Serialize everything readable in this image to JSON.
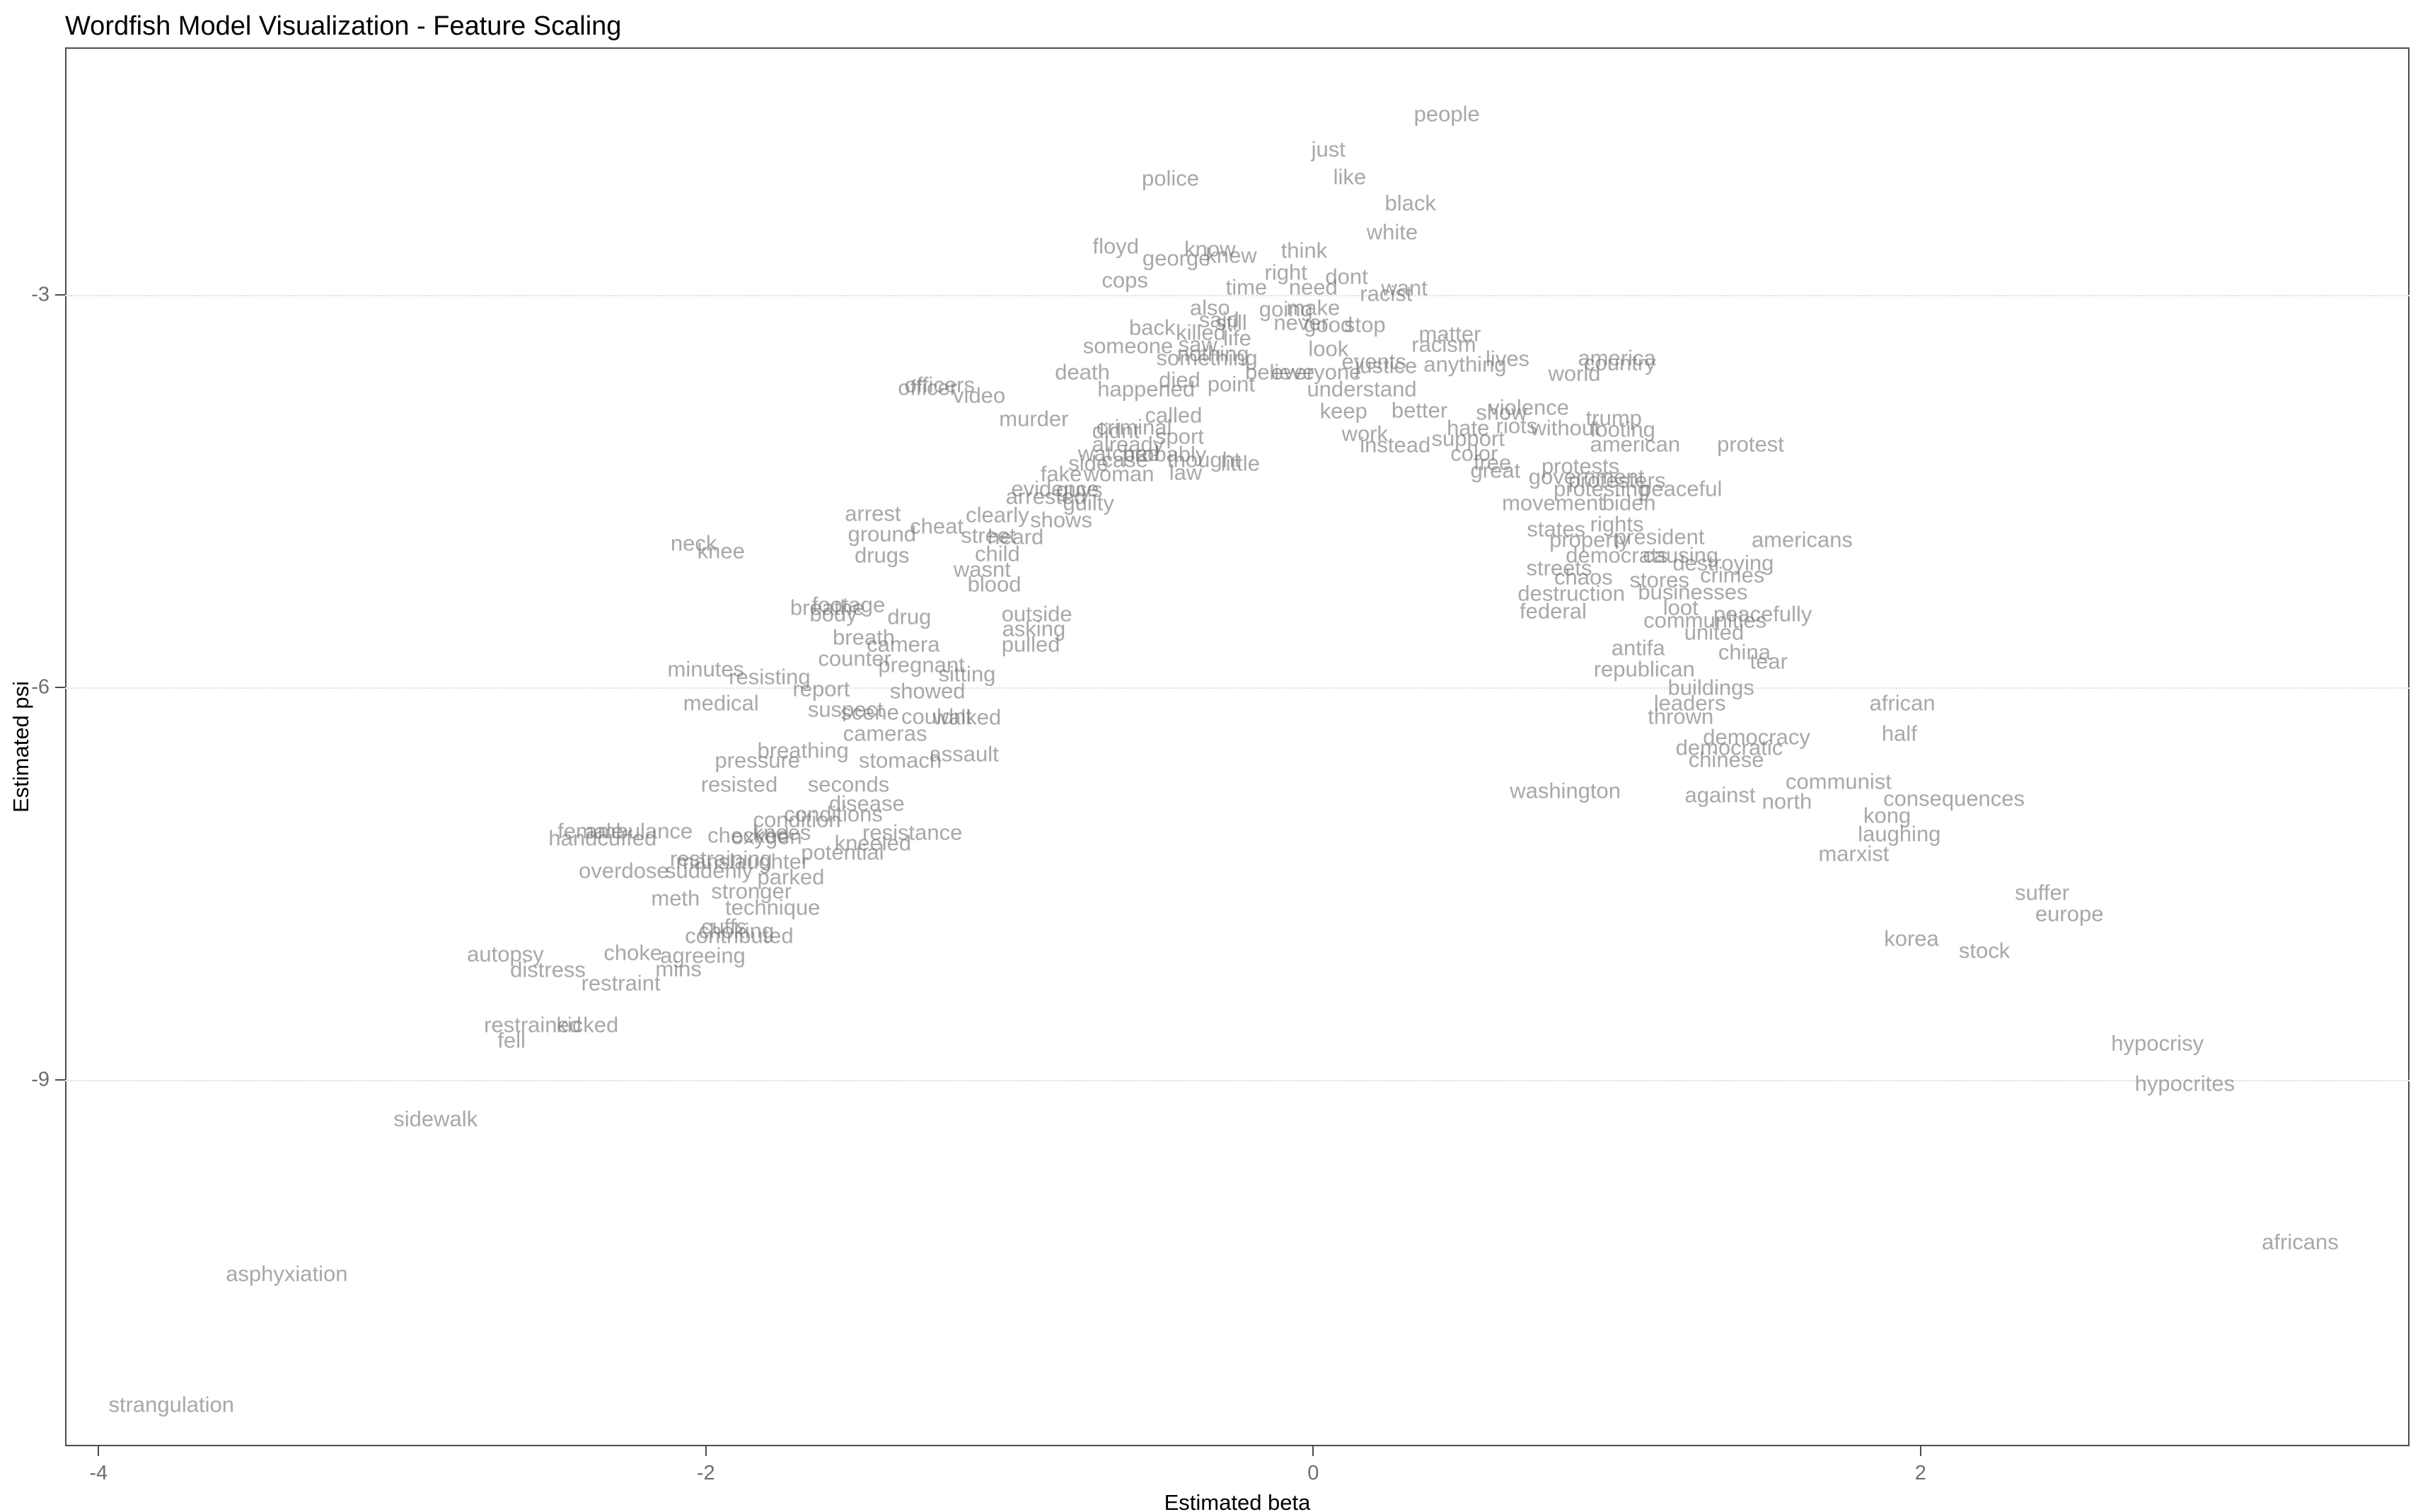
{
  "title": "Wordfish Model Visualization - Feature Scaling",
  "axes": {
    "x_label": "Estimated beta",
    "y_label": "Estimated psi",
    "x_ticks": [
      -4,
      -2,
      0,
      2
    ],
    "y_ticks": [
      -3,
      -6,
      -9
    ],
    "x_domain": [
      -4.11,
      3.61
    ],
    "y_domain": [
      -11.8,
      -1.11
    ]
  },
  "colors": {
    "word": "rgba(115,115,115,0.62)",
    "grid": "#dcdcdc",
    "tick_label": "#6e6e6e",
    "axis_title": "#000000",
    "panel_border": "#4d4d4d",
    "background": "#ffffff"
  },
  "chart_data": {
    "type": "scatter",
    "title": "Wordfish Model Visualization - Feature Scaling",
    "xlabel": "Estimated beta",
    "ylabel": "Estimated psi",
    "x_range": [
      -4.11,
      3.61
    ],
    "y_range": [
      -11.8,
      -1.11
    ],
    "grid": "horizontal dotted lines at y = -3, -6, -9; no vertical gridlines",
    "legend": "none",
    "mark": "text labels (word features), grey, overplotted in center",
    "words": [
      {
        "w": "people",
        "x": 0.44,
        "y": -1.62
      },
      {
        "w": "just",
        "x": 0.05,
        "y": -1.89
      },
      {
        "w": "like",
        "x": 0.12,
        "y": -2.1
      },
      {
        "w": "police",
        "x": -0.47,
        "y": -2.11
      },
      {
        "w": "black",
        "x": 0.32,
        "y": -2.3
      },
      {
        "w": "white",
        "x": 0.26,
        "y": -2.52
      },
      {
        "w": "floyd",
        "x": -0.65,
        "y": -2.63
      },
      {
        "w": "know",
        "x": -0.34,
        "y": -2.65
      },
      {
        "w": "knew",
        "x": -0.27,
        "y": -2.7
      },
      {
        "w": "george",
        "x": -0.45,
        "y": -2.72
      },
      {
        "w": "think",
        "x": -0.03,
        "y": -2.66
      },
      {
        "w": "cops",
        "x": -0.62,
        "y": -2.89
      },
      {
        "w": "right",
        "x": -0.09,
        "y": -2.83
      },
      {
        "w": "dont",
        "x": 0.11,
        "y": -2.86
      },
      {
        "w": "time",
        "x": -0.22,
        "y": -2.94
      },
      {
        "w": "need",
        "x": 0.0,
        "y": -2.94
      },
      {
        "w": "want",
        "x": 0.3,
        "y": -2.95
      },
      {
        "w": "racist",
        "x": 0.24,
        "y": -2.99
      },
      {
        "w": "also",
        "x": -0.34,
        "y": -3.1
      },
      {
        "w": "going",
        "x": -0.09,
        "y": -3.11
      },
      {
        "w": "make",
        "x": 0.0,
        "y": -3.1
      },
      {
        "w": "said",
        "x": -0.31,
        "y": -3.19
      },
      {
        "w": "still",
        "x": -0.27,
        "y": -3.21
      },
      {
        "w": "never",
        "x": -0.04,
        "y": -3.21
      },
      {
        "w": "good",
        "x": 0.05,
        "y": -3.23
      },
      {
        "w": "stop",
        "x": 0.17,
        "y": -3.23
      },
      {
        "w": "matter",
        "x": 0.45,
        "y": -3.3
      },
      {
        "w": "racism",
        "x": 0.43,
        "y": -3.38
      },
      {
        "w": "back",
        "x": -0.53,
        "y": -3.25
      },
      {
        "w": "killed",
        "x": -0.37,
        "y": -3.29
      },
      {
        "w": "life",
        "x": -0.25,
        "y": -3.33
      },
      {
        "w": "saw",
        "x": -0.38,
        "y": -3.38
      },
      {
        "w": "nothing",
        "x": -0.33,
        "y": -3.45
      },
      {
        "w": "look",
        "x": 0.05,
        "y": -3.41
      },
      {
        "w": "someone",
        "x": -0.61,
        "y": -3.39
      },
      {
        "w": "something",
        "x": -0.35,
        "y": -3.48
      },
      {
        "w": "death",
        "x": -0.76,
        "y": -3.59
      },
      {
        "w": "believe",
        "x": -0.11,
        "y": -3.59
      },
      {
        "w": "everyone",
        "x": 0.01,
        "y": -3.59
      },
      {
        "w": "events",
        "x": 0.2,
        "y": -3.51
      },
      {
        "w": "justice",
        "x": 0.24,
        "y": -3.54
      },
      {
        "w": "anything",
        "x": 0.5,
        "y": -3.53
      },
      {
        "w": "lives",
        "x": 0.64,
        "y": -3.49
      },
      {
        "w": "america",
        "x": 1.0,
        "y": -3.48
      },
      {
        "w": "country",
        "x": 1.01,
        "y": -3.52
      },
      {
        "w": "world",
        "x": 0.86,
        "y": -3.6
      },
      {
        "w": "died",
        "x": -0.44,
        "y": -3.65
      },
      {
        "w": "point",
        "x": -0.27,
        "y": -3.68
      },
      {
        "w": "happened",
        "x": -0.55,
        "y": -3.72
      },
      {
        "w": "understand",
        "x": 0.16,
        "y": -3.72
      },
      {
        "w": "officers",
        "x": -1.23,
        "y": -3.69
      },
      {
        "w": "officer",
        "x": -1.27,
        "y": -3.71
      },
      {
        "w": "video",
        "x": -1.1,
        "y": -3.77
      },
      {
        "w": "murder",
        "x": -0.92,
        "y": -3.95
      },
      {
        "w": "called",
        "x": -0.46,
        "y": -3.92
      },
      {
        "w": "criminal",
        "x": -0.59,
        "y": -4.01
      },
      {
        "w": "didnt",
        "x": -0.65,
        "y": -4.04
      },
      {
        "w": "sport",
        "x": -0.44,
        "y": -4.08
      },
      {
        "w": "already",
        "x": -0.61,
        "y": -4.14
      },
      {
        "w": "watched",
        "x": -0.64,
        "y": -4.21
      },
      {
        "w": "probably",
        "x": -0.49,
        "y": -4.22
      },
      {
        "w": "case",
        "x": -0.62,
        "y": -4.26
      },
      {
        "w": "side",
        "x": -0.74,
        "y": -4.29
      },
      {
        "w": "thought",
        "x": -0.36,
        "y": -4.26
      },
      {
        "w": "little",
        "x": -0.24,
        "y": -4.29
      },
      {
        "w": "law",
        "x": -0.42,
        "y": -4.36
      },
      {
        "w": "fake",
        "x": -0.83,
        "y": -4.37
      },
      {
        "w": "woman",
        "x": -0.64,
        "y": -4.37
      },
      {
        "w": "evidence",
        "x": -0.85,
        "y": -4.48
      },
      {
        "w": "arrested",
        "x": -0.88,
        "y": -4.54
      },
      {
        "w": "guilty",
        "x": -0.74,
        "y": -4.59
      },
      {
        "w": "guys",
        "x": -0.77,
        "y": -4.49
      },
      {
        "w": "better",
        "x": 0.35,
        "y": -3.88
      },
      {
        "w": "keep",
        "x": 0.1,
        "y": -3.89
      },
      {
        "w": "show",
        "x": 0.62,
        "y": -3.9
      },
      {
        "w": "violence",
        "x": 0.71,
        "y": -3.86
      },
      {
        "w": "riots",
        "x": 0.67,
        "y": -4.0
      },
      {
        "w": "hate",
        "x": 0.51,
        "y": -4.02
      },
      {
        "w": "work",
        "x": 0.17,
        "y": -4.06
      },
      {
        "w": "support",
        "x": 0.51,
        "y": -4.1
      },
      {
        "w": "instead",
        "x": 0.27,
        "y": -4.15
      },
      {
        "w": "color",
        "x": 0.53,
        "y": -4.21
      },
      {
        "w": "free",
        "x": 0.59,
        "y": -4.28
      },
      {
        "w": "great",
        "x": 0.6,
        "y": -4.34
      },
      {
        "w": "trump",
        "x": 0.99,
        "y": -3.94
      },
      {
        "w": "without",
        "x": 0.83,
        "y": -4.02
      },
      {
        "w": "looting",
        "x": 1.02,
        "y": -4.03
      },
      {
        "w": "american",
        "x": 1.06,
        "y": -4.14
      },
      {
        "w": "protest",
        "x": 1.44,
        "y": -4.14
      },
      {
        "w": "protests",
        "x": 0.88,
        "y": -4.31
      },
      {
        "w": "government",
        "x": 0.9,
        "y": -4.39
      },
      {
        "w": "protesters",
        "x": 1.0,
        "y": -4.42
      },
      {
        "w": "protesting",
        "x": 0.95,
        "y": -4.48
      },
      {
        "w": "peaceful",
        "x": 1.21,
        "y": -4.48
      },
      {
        "w": "movement",
        "x": 0.79,
        "y": -4.59
      },
      {
        "w": "biden",
        "x": 1.04,
        "y": -4.59
      },
      {
        "w": "rights",
        "x": 1.0,
        "y": -4.75
      },
      {
        "w": "states",
        "x": 0.8,
        "y": -4.79
      },
      {
        "w": "property",
        "x": 0.91,
        "y": -4.87
      },
      {
        "w": "president",
        "x": 1.14,
        "y": -4.85
      },
      {
        "w": "americans",
        "x": 1.61,
        "y": -4.87
      },
      {
        "w": "democrats",
        "x": 1.0,
        "y": -4.99
      },
      {
        "w": "causing",
        "x": 1.21,
        "y": -4.99
      },
      {
        "w": "destroying",
        "x": 1.35,
        "y": -5.05
      },
      {
        "w": "crimes",
        "x": 1.38,
        "y": -5.14
      },
      {
        "w": "streets",
        "x": 0.81,
        "y": -5.09
      },
      {
        "w": "chaos",
        "x": 0.89,
        "y": -5.16
      },
      {
        "w": "stores",
        "x": 1.14,
        "y": -5.18
      },
      {
        "w": "destruction",
        "x": 0.85,
        "y": -5.28
      },
      {
        "w": "businesses",
        "x": 1.25,
        "y": -5.27
      },
      {
        "w": "loot",
        "x": 1.21,
        "y": -5.39
      },
      {
        "w": "peacefully",
        "x": 1.48,
        "y": -5.44
      },
      {
        "w": "federal",
        "x": 0.79,
        "y": -5.42
      },
      {
        "w": "communities",
        "x": 1.29,
        "y": -5.49
      },
      {
        "w": "united",
        "x": 1.32,
        "y": -5.58
      },
      {
        "w": "antifa",
        "x": 1.07,
        "y": -5.7
      },
      {
        "w": "china",
        "x": 1.42,
        "y": -5.73
      },
      {
        "w": "tear",
        "x": 1.5,
        "y": -5.8
      },
      {
        "w": "republican",
        "x": 1.09,
        "y": -5.86
      },
      {
        "w": "buildings",
        "x": 1.31,
        "y": -6.0
      },
      {
        "w": "leaders",
        "x": 1.24,
        "y": -6.12
      },
      {
        "w": "thrown",
        "x": 1.21,
        "y": -6.22
      },
      {
        "w": "democracy",
        "x": 1.46,
        "y": -6.38
      },
      {
        "w": "democratic",
        "x": 1.37,
        "y": -6.46
      },
      {
        "w": "chinese",
        "x": 1.36,
        "y": -6.55
      },
      {
        "w": "washington",
        "x": 0.83,
        "y": -6.79
      },
      {
        "w": "against",
        "x": 1.34,
        "y": -6.82
      },
      {
        "w": "north",
        "x": 1.56,
        "y": -6.87
      },
      {
        "w": "communist",
        "x": 1.73,
        "y": -6.72
      },
      {
        "w": "african",
        "x": 1.94,
        "y": -6.12
      },
      {
        "w": "half",
        "x": 1.93,
        "y": -6.35
      },
      {
        "w": "consequences",
        "x": 2.11,
        "y": -6.85
      },
      {
        "w": "kong",
        "x": 1.89,
        "y": -6.98
      },
      {
        "w": "laughing",
        "x": 1.93,
        "y": -7.12
      },
      {
        "w": "marxist",
        "x": 1.78,
        "y": -7.27
      },
      {
        "w": "suffer",
        "x": 2.4,
        "y": -7.57
      },
      {
        "w": "europe",
        "x": 2.49,
        "y": -7.73
      },
      {
        "w": "korea",
        "x": 1.97,
        "y": -7.92
      },
      {
        "w": "stock",
        "x": 2.21,
        "y": -8.01
      },
      {
        "w": "hypocrisy",
        "x": 2.78,
        "y": -8.72
      },
      {
        "w": "hypocrites",
        "x": 2.87,
        "y": -9.03
      },
      {
        "w": "africans",
        "x": 3.25,
        "y": -10.24
      },
      {
        "w": "neck",
        "x": -2.04,
        "y": -4.9
      },
      {
        "w": "knee",
        "x": -1.95,
        "y": -4.96
      },
      {
        "w": "arrest",
        "x": -1.45,
        "y": -4.67
      },
      {
        "w": "ground",
        "x": -1.42,
        "y": -4.83
      },
      {
        "w": "drugs",
        "x": -1.42,
        "y": -4.99
      },
      {
        "w": "cheat",
        "x": -1.24,
        "y": -4.77
      },
      {
        "w": "clearly",
        "x": -1.04,
        "y": -4.68
      },
      {
        "w": "shows",
        "x": -0.83,
        "y": -4.72
      },
      {
        "w": "street",
        "x": -1.07,
        "y": -4.84
      },
      {
        "w": "heard",
        "x": -0.98,
        "y": -4.85
      },
      {
        "w": "child",
        "x": -1.04,
        "y": -4.98
      },
      {
        "w": "wasnt",
        "x": -1.09,
        "y": -5.1
      },
      {
        "w": "blood",
        "x": -1.05,
        "y": -5.21
      },
      {
        "w": "footage",
        "x": -1.53,
        "y": -5.37
      },
      {
        "w": "breathe",
        "x": -1.6,
        "y": -5.39
      },
      {
        "w": "body",
        "x": -1.58,
        "y": -5.44
      },
      {
        "w": "drug",
        "x": -1.33,
        "y": -5.46
      },
      {
        "w": "outside",
        "x": -0.91,
        "y": -5.44
      },
      {
        "w": "asking",
        "x": -0.92,
        "y": -5.55
      },
      {
        "w": "breath",
        "x": -1.48,
        "y": -5.62
      },
      {
        "w": "camera",
        "x": -1.35,
        "y": -5.67
      },
      {
        "w": "pulled",
        "x": -0.93,
        "y": -5.67
      },
      {
        "w": "counter",
        "x": -1.51,
        "y": -5.78
      },
      {
        "w": "pregnant",
        "x": -1.29,
        "y": -5.83
      },
      {
        "w": "sitting",
        "x": -1.14,
        "y": -5.9
      },
      {
        "w": "minutes",
        "x": -2.0,
        "y": -5.86
      },
      {
        "w": "resisting",
        "x": -1.79,
        "y": -5.92
      },
      {
        "w": "report",
        "x": -1.62,
        "y": -6.01
      },
      {
        "w": "showed",
        "x": -1.27,
        "y": -6.03
      },
      {
        "w": "medical",
        "x": -1.95,
        "y": -6.12
      },
      {
        "w": "suspect",
        "x": -1.54,
        "y": -6.17
      },
      {
        "w": "scene",
        "x": -1.46,
        "y": -6.19
      },
      {
        "w": "couldnt",
        "x": -1.24,
        "y": -6.22
      },
      {
        "w": "walked",
        "x": -1.14,
        "y": -6.23
      },
      {
        "w": "cameras",
        "x": -1.41,
        "y": -6.35
      },
      {
        "w": "breathing",
        "x": -1.68,
        "y": -6.48
      },
      {
        "w": "pressure",
        "x": -1.83,
        "y": -6.56
      },
      {
        "w": "stomach",
        "x": -1.36,
        "y": -6.56
      },
      {
        "w": "assault",
        "x": -1.15,
        "y": -6.51
      },
      {
        "w": "resisted",
        "x": -1.89,
        "y": -6.74
      },
      {
        "w": "seconds",
        "x": -1.53,
        "y": -6.74
      },
      {
        "w": "disease",
        "x": -1.47,
        "y": -6.89
      },
      {
        "w": "condition",
        "x": -1.7,
        "y": -7.01
      },
      {
        "w": "conditions",
        "x": -1.58,
        "y": -6.97
      },
      {
        "w": "resistance",
        "x": -1.32,
        "y": -7.11
      },
      {
        "w": "kneeled",
        "x": -1.45,
        "y": -7.19
      },
      {
        "w": "potential",
        "x": -1.55,
        "y": -7.26
      },
      {
        "w": "handcuffed",
        "x": -2.34,
        "y": -7.15
      },
      {
        "w": "ambulance",
        "x": -2.22,
        "y": -7.1
      },
      {
        "w": "female",
        "x": -2.38,
        "y": -7.1
      },
      {
        "w": "checked",
        "x": -1.86,
        "y": -7.13
      },
      {
        "w": "oxygen",
        "x": -1.8,
        "y": -7.14
      },
      {
        "w": "knees",
        "x": -1.75,
        "y": -7.11
      },
      {
        "w": "restraining",
        "x": -1.95,
        "y": -7.31
      },
      {
        "w": "manslaughter",
        "x": -1.88,
        "y": -7.33
      },
      {
        "w": "suddenly",
        "x": -1.99,
        "y": -7.4
      },
      {
        "w": "parked",
        "x": -1.72,
        "y": -7.45
      },
      {
        "w": "overdose",
        "x": -2.27,
        "y": -7.4
      },
      {
        "w": "stronger",
        "x": -1.85,
        "y": -7.56
      },
      {
        "w": "meth",
        "x": -2.1,
        "y": -7.61
      },
      {
        "w": "technique",
        "x": -1.78,
        "y": -7.68
      },
      {
        "w": "cuffs",
        "x": -1.94,
        "y": -7.83
      },
      {
        "w": "choking",
        "x": -1.9,
        "y": -7.86
      },
      {
        "w": "contributed",
        "x": -1.89,
        "y": -7.9
      },
      {
        "w": "choke",
        "x": -2.24,
        "y": -8.03
      },
      {
        "w": "agreeing",
        "x": -2.01,
        "y": -8.05
      },
      {
        "w": "autopsy",
        "x": -2.66,
        "y": -8.04
      },
      {
        "w": "distress",
        "x": -2.52,
        "y": -8.16
      },
      {
        "w": "mins",
        "x": -2.09,
        "y": -8.15
      },
      {
        "w": "restraint",
        "x": -2.28,
        "y": -8.26
      },
      {
        "w": "restrained",
        "x": -2.57,
        "y": -8.58
      },
      {
        "w": "kicked",
        "x": -2.39,
        "y": -8.58
      },
      {
        "w": "fell",
        "x": -2.64,
        "y": -8.7
      },
      {
        "w": "sidewalk",
        "x": -2.89,
        "y": -9.3
      },
      {
        "w": "asphyxiation",
        "x": -3.38,
        "y": -10.48
      },
      {
        "w": "strangulation",
        "x": -3.76,
        "y": -11.48
      }
    ]
  }
}
